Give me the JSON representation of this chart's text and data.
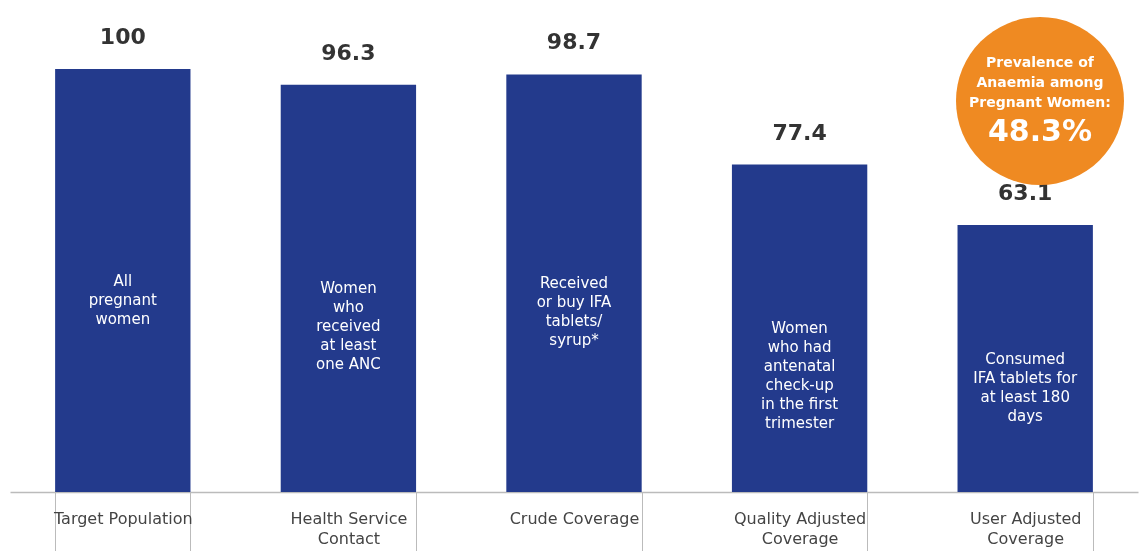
{
  "chart_data": {
    "type": "bar",
    "categories": [
      "Target Population",
      "Health Service Contact",
      "Crude Coverage",
      "Quality Adjusted Coverage",
      "User Adjusted Coverage"
    ],
    "values": [
      100,
      96.3,
      98.7,
      77.4,
      63.1
    ],
    "color": "#233a8c",
    "data_labels": true,
    "annotations": [
      "All\npregnant\nwomen",
      "Women\nwho\nreceived\nat least\none ANC",
      "Received\nor buy IFA\ntablets/\nsyrup*",
      "Women\nwho had\nantenatal\ncheck-up\nin the first\ntrimester",
      "Consumed\nIFA tablets for\nat least 180\ndays",
      "Prevalence of Anaemia among Pregnant Women: 48.3%"
    ]
  }
}
